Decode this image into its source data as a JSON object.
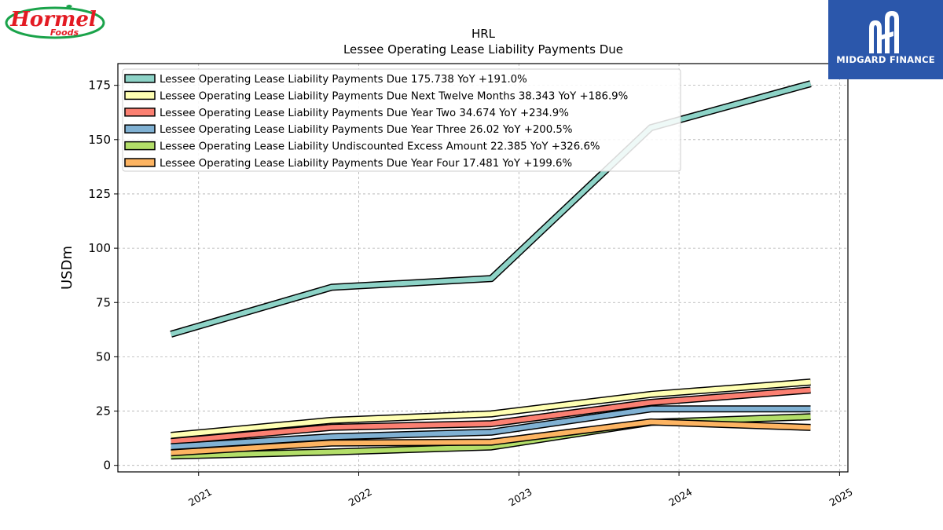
{
  "brand": {
    "company_logo_text": "Hormel",
    "company_logo_subtext": "Foods",
    "company_logo_color": "#e31b23",
    "watermark_name": "MIDGARD FINANCE",
    "watermark_bg": "#2b57ab"
  },
  "chart_data": {
    "type": "area",
    "title": "HRL",
    "subtitle": "Lessee Operating Lease Liability Payments Due",
    "ylabel": "USDm",
    "xlabel": "",
    "ylim": [
      -3,
      185
    ],
    "xlim": [
      "2020-07-01",
      "2025-01-20"
    ],
    "yticks": [
      0,
      25,
      50,
      75,
      100,
      125,
      150,
      175
    ],
    "xticks": [
      "2021",
      "2022",
      "2023",
      "2024",
      "2025"
    ],
    "grid": true,
    "legend_position": "top-left",
    "x": [
      "2020-10-30",
      "2021-10-31",
      "2022-10-30",
      "2023-10-29",
      "2024-10-27"
    ],
    "series": [
      {
        "name": "Lessee Operating Lease Liability Payments Due  175.738 YoY +191.0%",
        "color": "#8dd3c7",
        "values": [
          60.4,
          82.0,
          86.0,
          155.5,
          175.738
        ]
      },
      {
        "name": "Lessee Operating Lease Liability Payments Due Next Twelve Months  38.343 YoY +186.9%",
        "color": "#ffffb3",
        "values": [
          13.8,
          20.7,
          23.7,
          32.7,
          38.343
        ]
      },
      {
        "name": "Lessee Operating Lease Liability Payments Due Year Two  34.674 YoY +234.9%",
        "color": "#fb8072",
        "values": [
          11.0,
          17.5,
          19.2,
          29.0,
          34.674
        ]
      },
      {
        "name": "Lessee Operating Lease Liability Payments Due Year Three  26.02 YoY +200.5%",
        "color": "#80b1d3",
        "values": [
          8.6,
          13.2,
          15.3,
          26.0,
          26.02
        ]
      },
      {
        "name": "Lessee Operating Lease Liability Undiscounted Excess Amount  22.385 YoY +326.6%",
        "color": "#b3de69",
        "values": [
          4.3,
          6.2,
          8.5,
          19.8,
          22.385
        ]
      },
      {
        "name": "Lessee Operating Lease Liability Payments Due Year Four  17.481 YoY +199.6%",
        "color": "#fdb462",
        "values": [
          5.8,
          10.3,
          10.7,
          20.0,
          17.481
        ]
      }
    ]
  }
}
